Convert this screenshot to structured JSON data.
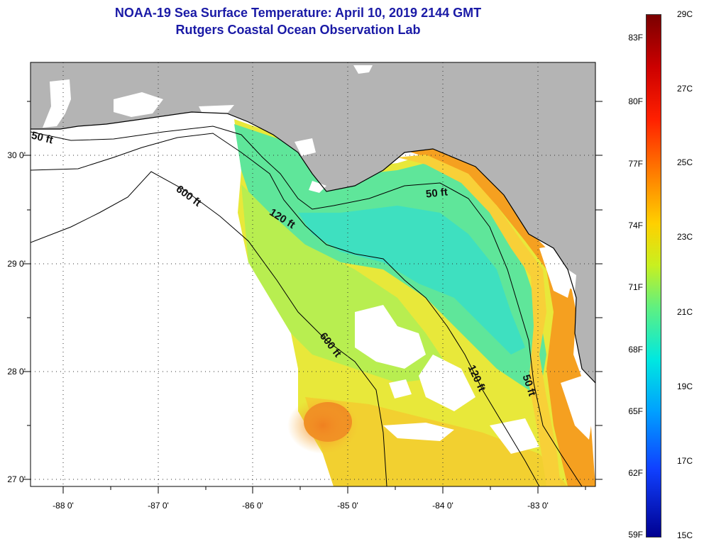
{
  "title_line1": "NOAA-19 Sea Surface Temperature:  April 10, 2019 2144 GMT",
  "title_line2": "Rutgers Coastal Ocean Observation Lab",
  "lat_ticks": [
    "30 0'",
    "29 0'",
    "28 0'",
    "27 0'"
  ],
  "lon_ticks": [
    "-88 0'",
    "-87 0'",
    "-86 0'",
    "-85 0'",
    "-84 0'",
    "-83 0'"
  ],
  "contour_labels": {
    "c50_west": "50 ft",
    "c600_north": "600 ft",
    "c120_north": "120 ft",
    "c50_east": "50 ft",
    "c600_south": "600 ft",
    "c120_south": "120 ft",
    "c50_south": "50 ft"
  },
  "colorbar": {
    "fahrenheit": [
      "83F",
      "80F",
      "77F",
      "74F",
      "71F",
      "68F",
      "65F",
      "62F",
      "59F"
    ],
    "celsius": [
      "29C",
      "27C",
      "25C",
      "23C",
      "21C",
      "19C",
      "17C",
      "15C"
    ],
    "range_c": [
      15,
      29
    ],
    "colors": [
      "#7a0000",
      "#ff2000",
      "#ff7a00",
      "#ffd000",
      "#60f080",
      "#00e8e0",
      "#00a0ff",
      "#000090"
    ]
  },
  "colors": {
    "land": "#b4b4b4",
    "no_data": "#ffffff",
    "title": "#1a1aa6"
  }
}
